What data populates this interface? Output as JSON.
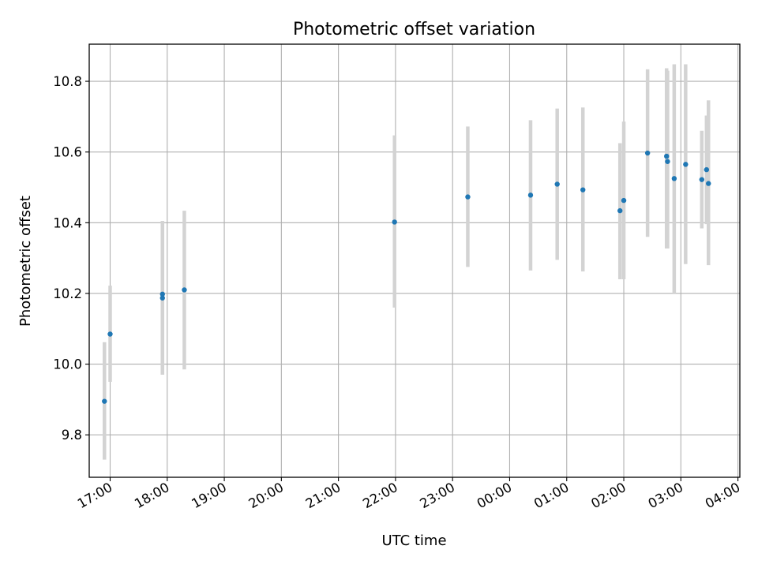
{
  "chart_data": {
    "type": "scatter",
    "title": "Photometric offset variation",
    "xlabel": "UTC time",
    "ylabel": "Photometric offset",
    "grid": true,
    "x_axis_type": "time",
    "xlim": [
      "16:38",
      "04:02"
    ],
    "ylim": [
      9.68,
      10.905
    ],
    "x_ticks": [
      "17:00",
      "18:00",
      "19:00",
      "20:00",
      "21:00",
      "22:00",
      "23:00",
      "00:00",
      "01:00",
      "02:00",
      "03:00",
      "04:00"
    ],
    "y_ticks": [
      9.8,
      10.0,
      10.2,
      10.4,
      10.6,
      10.8
    ],
    "y_tick_labels": [
      "9.8",
      "10.0",
      "10.2",
      "10.4",
      "10.6",
      "10.8"
    ],
    "point_color": "#1f77b4",
    "error_bar_color": "#d3d3d3",
    "points": [
      {
        "x": "16:54",
        "y": 9.895,
        "ylow": 9.73,
        "yhigh": 10.062
      },
      {
        "x": "17:00",
        "y": 10.085,
        "ylow": 9.95,
        "yhigh": 10.222
      },
      {
        "x": "17:55",
        "y": 10.198,
        "ylow": 9.97,
        "yhigh": 10.405
      },
      {
        "x": "17:55",
        "y": 10.187,
        "ylow": 9.97,
        "yhigh": 10.405
      },
      {
        "x": "18:18",
        "y": 10.21,
        "ylow": 9.985,
        "yhigh": 10.434
      },
      {
        "x": "21:59",
        "y": 10.402,
        "ylow": 10.16,
        "yhigh": 10.647
      },
      {
        "x": "23:16",
        "y": 10.473,
        "ylow": 10.275,
        "yhigh": 10.672
      },
      {
        "x": "00:22",
        "y": 10.478,
        "ylow": 10.265,
        "yhigh": 10.69
      },
      {
        "x": "00:50",
        "y": 10.509,
        "ylow": 10.295,
        "yhigh": 10.723
      },
      {
        "x": "01:17",
        "y": 10.493,
        "ylow": 10.262,
        "yhigh": 10.726
      },
      {
        "x": "01:56",
        "y": 10.434,
        "ylow": 10.24,
        "yhigh": 10.625
      },
      {
        "x": "02:00",
        "y": 10.463,
        "ylow": 10.24,
        "yhigh": 10.686
      },
      {
        "x": "02:25",
        "y": 10.597,
        "ylow": 10.36,
        "yhigh": 10.834
      },
      {
        "x": "02:45",
        "y": 10.588,
        "ylow": 10.327,
        "yhigh": 10.837
      },
      {
        "x": "02:46",
        "y": 10.573,
        "ylow": 10.327,
        "yhigh": 10.83
      },
      {
        "x": "02:53",
        "y": 10.525,
        "ylow": 10.2,
        "yhigh": 10.848
      },
      {
        "x": "03:05",
        "y": 10.565,
        "ylow": 10.283,
        "yhigh": 10.848
      },
      {
        "x": "03:22",
        "y": 10.522,
        "ylow": 10.384,
        "yhigh": 10.66
      },
      {
        "x": "03:27",
        "y": 10.55,
        "ylow": 10.396,
        "yhigh": 10.703
      },
      {
        "x": "03:29",
        "y": 10.511,
        "ylow": 10.28,
        "yhigh": 10.746
      }
    ]
  }
}
